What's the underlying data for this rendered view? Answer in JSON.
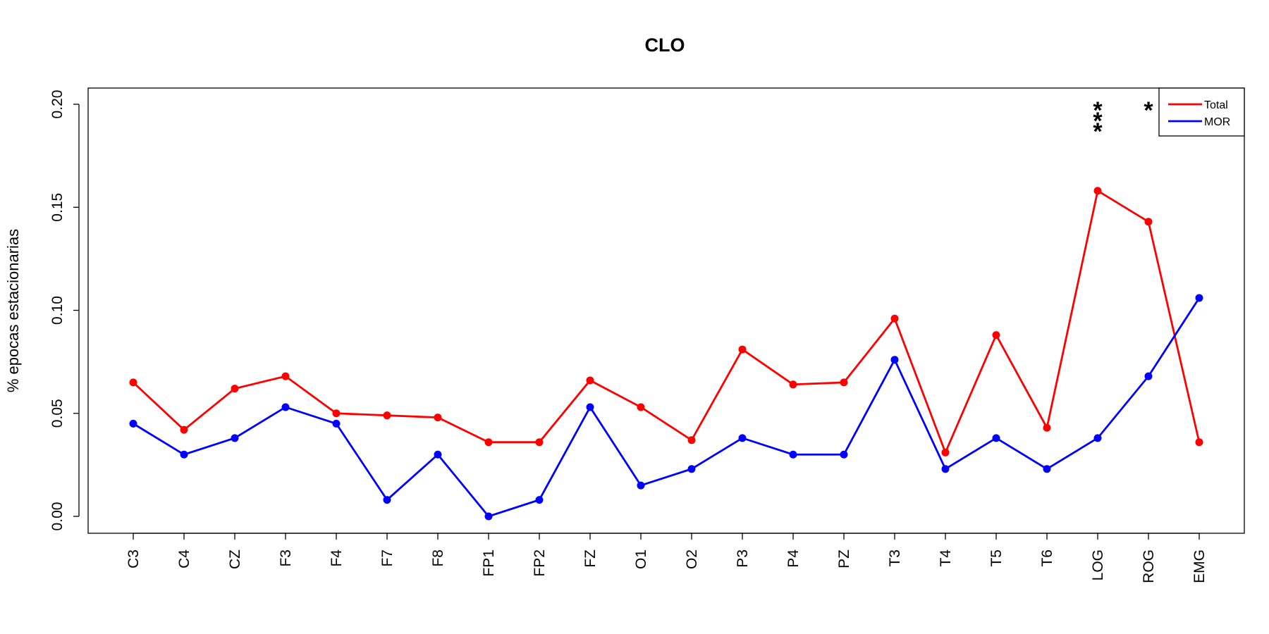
{
  "chart_data": {
    "type": "line",
    "title": "CLO",
    "xlabel": "",
    "ylabel": "% epocas estacionarias",
    "ylim": [
      0,
      0.2
    ],
    "yticks": [
      "0.00",
      "0.05",
      "0.10",
      "0.15",
      "0.20"
    ],
    "ytick_values": [
      0,
      0.05,
      0.1,
      0.15,
      0.2
    ],
    "categories": [
      "C3",
      "C4",
      "CZ",
      "F3",
      "F4",
      "F7",
      "F8",
      "FP1",
      "FP2",
      "FZ",
      "O1",
      "O2",
      "P3",
      "P4",
      "PZ",
      "T3",
      "T4",
      "T5",
      "T6",
      "LOG",
      "ROG",
      "EMG"
    ],
    "series": [
      {
        "name": "Total",
        "color": "#ff0000",
        "values": [
          0.065,
          0.042,
          0.062,
          0.068,
          0.05,
          0.049,
          0.048,
          0.036,
          0.036,
          0.066,
          0.053,
          0.037,
          0.081,
          0.064,
          0.065,
          0.096,
          0.031,
          0.088,
          0.043,
          0.158,
          0.143,
          0.036
        ]
      },
      {
        "name": "MOR",
        "color": "#0000ff",
        "values": [
          0.045,
          0.03,
          0.038,
          0.053,
          0.045,
          0.008,
          0.03,
          0.0,
          0.008,
          0.053,
          0.015,
          0.023,
          0.038,
          0.03,
          0.03,
          0.076,
          0.023,
          0.038,
          0.023,
          0.038,
          0.068,
          0.106
        ]
      }
    ],
    "legend": {
      "position": "top-right"
    },
    "grid": false,
    "significance_marks": [
      {
        "category": "LOG",
        "marks": [
          "*",
          "*",
          "*"
        ]
      },
      {
        "category": "ROG",
        "marks": [
          "*"
        ]
      },
      {
        "category": "EMG",
        "marks": [
          "*",
          "*",
          "*"
        ]
      }
    ]
  }
}
